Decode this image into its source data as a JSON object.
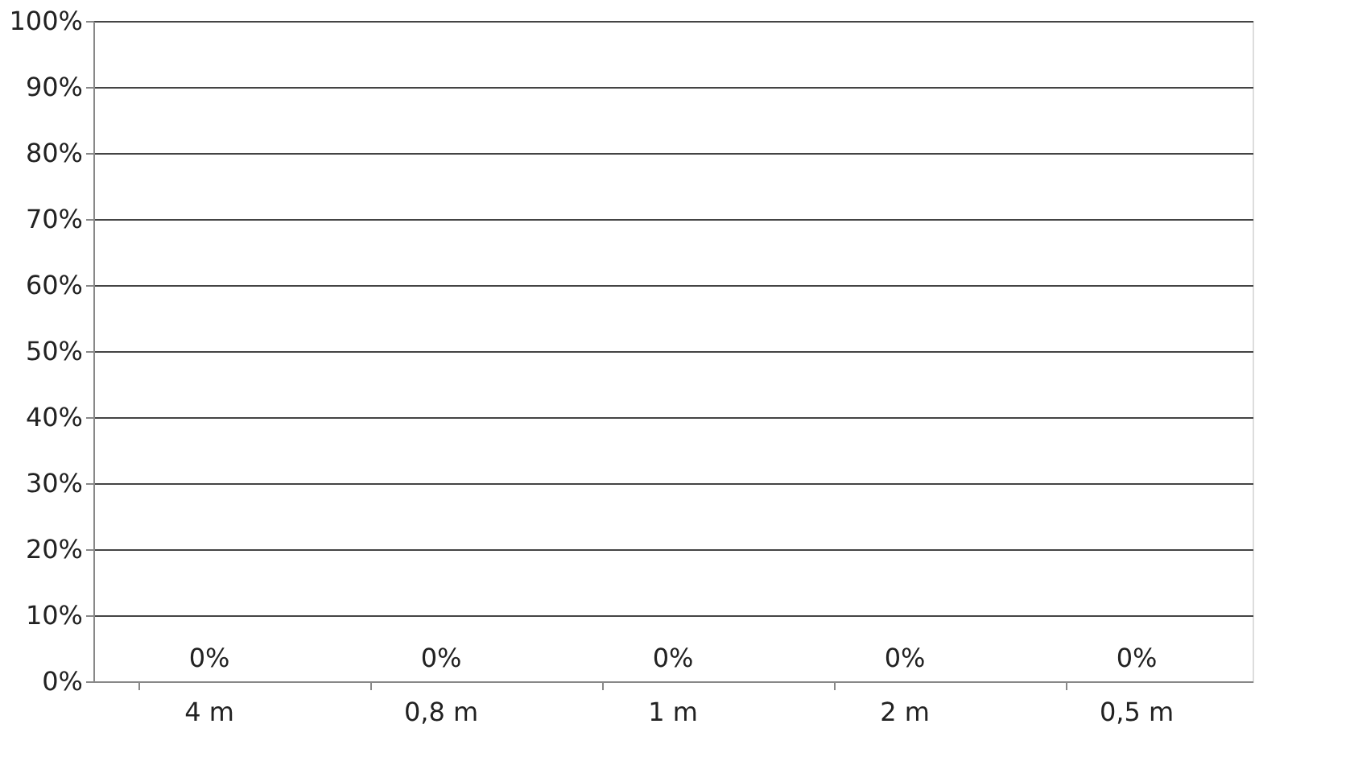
{
  "chart_data": {
    "type": "bar",
    "categories": [
      "4 m",
      "0,8 m",
      "1 m",
      "2 m",
      "0,5 m"
    ],
    "values": [
      0,
      0,
      0,
      0,
      0
    ],
    "value_labels": [
      "0%",
      "0%",
      "0%",
      "0%",
      "0%"
    ],
    "ylim": [
      0,
      100
    ],
    "yticks": [
      {
        "value": 0,
        "label": "0%"
      },
      {
        "value": 10,
        "label": "10%"
      },
      {
        "value": 20,
        "label": "20%"
      },
      {
        "value": 30,
        "label": "30%"
      },
      {
        "value": 40,
        "label": "40%"
      },
      {
        "value": 50,
        "label": "50%"
      },
      {
        "value": 60,
        "label": "60%"
      },
      {
        "value": 70,
        "label": "70%"
      },
      {
        "value": 80,
        "label": "80%"
      },
      {
        "value": 90,
        "label": "90%"
      },
      {
        "value": 100,
        "label": "100%"
      }
    ],
    "grid": "y"
  }
}
